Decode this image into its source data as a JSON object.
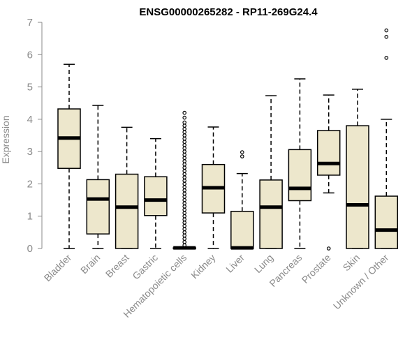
{
  "chart_data": {
    "type": "boxplot",
    "title": "ENSG00000265282 - RP11-269G24.4",
    "xlabel": "",
    "ylabel": "Expression",
    "ylim": [
      0,
      7
    ],
    "yticks": [
      0,
      1,
      2,
      3,
      4,
      5,
      6,
      7
    ],
    "box_color": "#ede7cc",
    "line_color": "#000000",
    "categories": [
      "Bladder",
      "Brain",
      "Breast",
      "Gastric",
      "Hematopoietic cells",
      "Kidney",
      "Liver",
      "Lung",
      "Pancreas",
      "Prostate",
      "Skin",
      "Unknown / Other"
    ],
    "boxes": [
      {
        "name": "Bladder",
        "min": 0,
        "q1": 2.48,
        "median": 3.42,
        "q3": 4.32,
        "max": 5.7,
        "outliers": []
      },
      {
        "name": "Brain",
        "min": 0,
        "q1": 0.45,
        "median": 1.53,
        "q3": 2.13,
        "max": 4.43,
        "outliers": []
      },
      {
        "name": "Breast",
        "min": 0,
        "q1": 0,
        "median": 1.28,
        "q3": 2.3,
        "max": 3.75,
        "outliers": []
      },
      {
        "name": "Gastric",
        "min": 0,
        "q1": 1.02,
        "median": 1.5,
        "q3": 2.22,
        "max": 3.4,
        "outliers": []
      },
      {
        "name": "Hematopoietic cells",
        "min": 0,
        "q1": 0,
        "median": 0.02,
        "q3": 0.02,
        "max": 0.05,
        "outliers": [
          0.1,
          0.2,
          0.3,
          0.4,
          0.5,
          0.6,
          0.7,
          0.8,
          0.9,
          1.0,
          1.1,
          1.2,
          1.3,
          1.4,
          1.5,
          1.6,
          1.7,
          1.8,
          1.9,
          2.0,
          2.1,
          2.2,
          2.3,
          2.4,
          2.5,
          2.6,
          2.7,
          2.8,
          2.9,
          3.0,
          3.1,
          3.2,
          3.3,
          3.4,
          3.5,
          3.6,
          3.7,
          3.8,
          3.9,
          4.05,
          4.2
        ]
      },
      {
        "name": "Kidney",
        "min": 0,
        "q1": 1.1,
        "median": 1.88,
        "q3": 2.6,
        "max": 3.76,
        "outliers": []
      },
      {
        "name": "Liver",
        "min": 0,
        "q1": 0,
        "median": 0.02,
        "q3": 1.15,
        "max": 2.32,
        "outliers": [
          2.85,
          2.98
        ]
      },
      {
        "name": "Lung",
        "min": 0,
        "q1": 0,
        "median": 1.28,
        "q3": 2.12,
        "max": 4.73,
        "outliers": []
      },
      {
        "name": "Pancreas",
        "min": 0,
        "q1": 1.48,
        "median": 1.86,
        "q3": 3.06,
        "max": 5.25,
        "outliers": []
      },
      {
        "name": "Prostate",
        "min": 1.72,
        "q1": 2.27,
        "median": 2.63,
        "q3": 3.65,
        "max": 4.75,
        "outliers": [
          0
        ]
      },
      {
        "name": "Skin",
        "min": 0,
        "q1": 0,
        "median": 1.35,
        "q3": 3.8,
        "max": 4.93,
        "outliers": []
      },
      {
        "name": "Unknown / Other",
        "min": 0,
        "q1": 0,
        "median": 0.57,
        "q3": 1.62,
        "max": 4.0,
        "outliers": [
          5.9,
          6.55,
          6.75
        ]
      }
    ]
  }
}
